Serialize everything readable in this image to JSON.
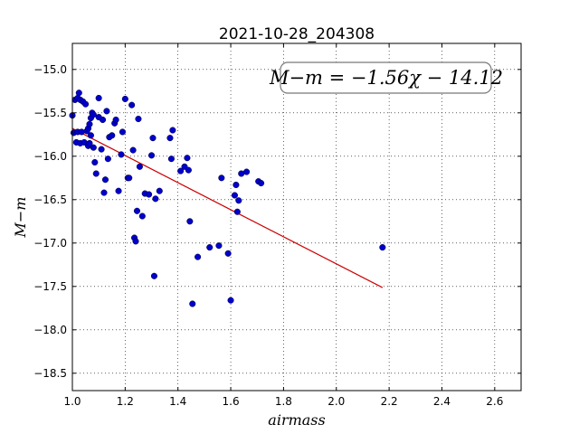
{
  "chart_data": {
    "type": "scatter",
    "title": "2021-10-28_204308",
    "xlabel": "airmass",
    "ylabel": "M−m",
    "xlim": [
      1.0,
      2.7
    ],
    "ylim": [
      -18.7,
      -14.7
    ],
    "xticks": [
      1.0,
      1.2,
      1.4,
      1.6,
      1.8,
      2.0,
      2.2,
      2.4,
      2.6
    ],
    "xtick_labels": [
      "1.0",
      "1.2",
      "1.4",
      "1.6",
      "1.8",
      "2.0",
      "2.2",
      "2.4",
      "2.6"
    ],
    "yticks": [
      -15.0,
      -15.5,
      -16.0,
      -16.5,
      -17.0,
      -17.5,
      -18.0,
      -18.5
    ],
    "ytick_labels": [
      "−15.0",
      "−15.5",
      "−16.0",
      "−16.5",
      "−17.0",
      "−17.5",
      "−18.0",
      "−18.5"
    ],
    "grid": true,
    "annotation": "M−m = −1.56χ − 14.12",
    "fit": {
      "slope": -1.56,
      "intercept": -14.12,
      "x_range": [
        1.0,
        2.175
      ],
      "color": "#cc0000"
    },
    "marker_color": "#0000cc",
    "series": [
      {
        "points": [
          [
            1.0,
            -15.53
          ],
          [
            1.005,
            -15.73
          ],
          [
            1.01,
            -15.35
          ],
          [
            1.015,
            -15.84
          ],
          [
            1.02,
            -15.33
          ],
          [
            1.02,
            -15.72
          ],
          [
            1.025,
            -15.27
          ],
          [
            1.03,
            -15.35
          ],
          [
            1.03,
            -15.85
          ],
          [
            1.035,
            -15.72
          ],
          [
            1.04,
            -15.37
          ],
          [
            1.045,
            -15.84
          ],
          [
            1.05,
            -15.4
          ],
          [
            1.055,
            -15.71
          ],
          [
            1.06,
            -15.68
          ],
          [
            1.06,
            -15.88
          ],
          [
            1.065,
            -15.85
          ],
          [
            1.065,
            -15.63
          ],
          [
            1.07,
            -15.76
          ],
          [
            1.07,
            -15.56
          ],
          [
            1.075,
            -15.5
          ],
          [
            1.08,
            -15.52
          ],
          [
            1.08,
            -15.9
          ],
          [
            1.085,
            -16.07
          ],
          [
            1.09,
            -16.2
          ],
          [
            1.1,
            -15.33
          ],
          [
            1.1,
            -15.55
          ],
          [
            1.11,
            -15.92
          ],
          [
            1.115,
            -15.58
          ],
          [
            1.12,
            -16.42
          ],
          [
            1.125,
            -16.27
          ],
          [
            1.13,
            -15.48
          ],
          [
            1.135,
            -16.03
          ],
          [
            1.14,
            -15.78
          ],
          [
            1.15,
            -15.76
          ],
          [
            1.16,
            -15.62
          ],
          [
            1.165,
            -15.58
          ],
          [
            1.175,
            -16.4
          ],
          [
            1.185,
            -15.98
          ],
          [
            1.19,
            -15.72
          ],
          [
            1.2,
            -15.34
          ],
          [
            1.21,
            -16.25
          ],
          [
            1.215,
            -16.25
          ],
          [
            1.225,
            -15.41
          ],
          [
            1.23,
            -15.93
          ],
          [
            1.235,
            -16.94
          ],
          [
            1.24,
            -16.98
          ],
          [
            1.245,
            -16.63
          ],
          [
            1.25,
            -15.57
          ],
          [
            1.255,
            -16.12
          ],
          [
            1.265,
            -16.69
          ],
          [
            1.275,
            -16.43
          ],
          [
            1.29,
            -16.44
          ],
          [
            1.3,
            -15.99
          ],
          [
            1.305,
            -15.79
          ],
          [
            1.31,
            -17.38
          ],
          [
            1.315,
            -16.49
          ],
          [
            1.33,
            -16.4
          ],
          [
            1.37,
            -15.79
          ],
          [
            1.375,
            -16.03
          ],
          [
            1.38,
            -15.7
          ],
          [
            1.41,
            -16.17
          ],
          [
            1.425,
            -16.12
          ],
          [
            1.435,
            -16.02
          ],
          [
            1.44,
            -16.16
          ],
          [
            1.445,
            -16.75
          ],
          [
            1.455,
            -17.7
          ],
          [
            1.475,
            -17.16
          ],
          [
            1.52,
            -17.05
          ],
          [
            1.555,
            -17.03
          ],
          [
            1.565,
            -16.25
          ],
          [
            1.59,
            -17.12
          ],
          [
            1.6,
            -17.66
          ],
          [
            1.615,
            -16.45
          ],
          [
            1.62,
            -16.33
          ],
          [
            1.625,
            -16.64
          ],
          [
            1.63,
            -16.51
          ],
          [
            1.64,
            -16.2
          ],
          [
            1.66,
            -16.18
          ],
          [
            1.705,
            -16.29
          ],
          [
            1.715,
            -16.31
          ],
          [
            2.175,
            -17.05
          ]
        ]
      }
    ]
  }
}
